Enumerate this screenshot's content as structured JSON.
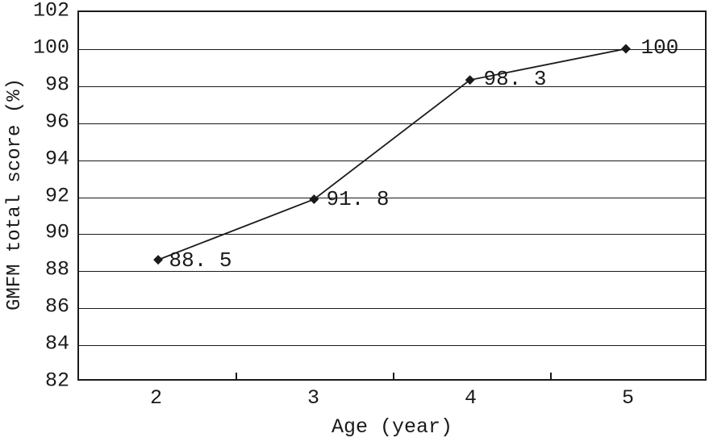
{
  "chart_data": {
    "type": "line",
    "title": "",
    "xlabel": "Age (year)",
    "ylabel": "GMFM total score (%)",
    "x": [
      2,
      3,
      4,
      5
    ],
    "x_tick_labels": [
      "2",
      "3",
      "4",
      "5"
    ],
    "series": [
      {
        "name": "GMFM total score",
        "values": [
          88.5,
          91.8,
          98.3,
          100
        ]
      }
    ],
    "point_labels": [
      "88. 5",
      "91. 8",
      "98. 3",
      "100"
    ],
    "ylim": [
      82,
      102
    ],
    "y_tick_step": 2,
    "y_tick_labels": [
      "102",
      "100",
      "98",
      "96",
      "94",
      "92",
      "90",
      "88",
      "86",
      "84",
      "82"
    ],
    "grid": "horizontal",
    "legend_position": "none",
    "marker": "diamond",
    "line_color": "#1a1a1a",
    "marker_color": "#1a1a1a",
    "background_color": "#ffffff"
  }
}
